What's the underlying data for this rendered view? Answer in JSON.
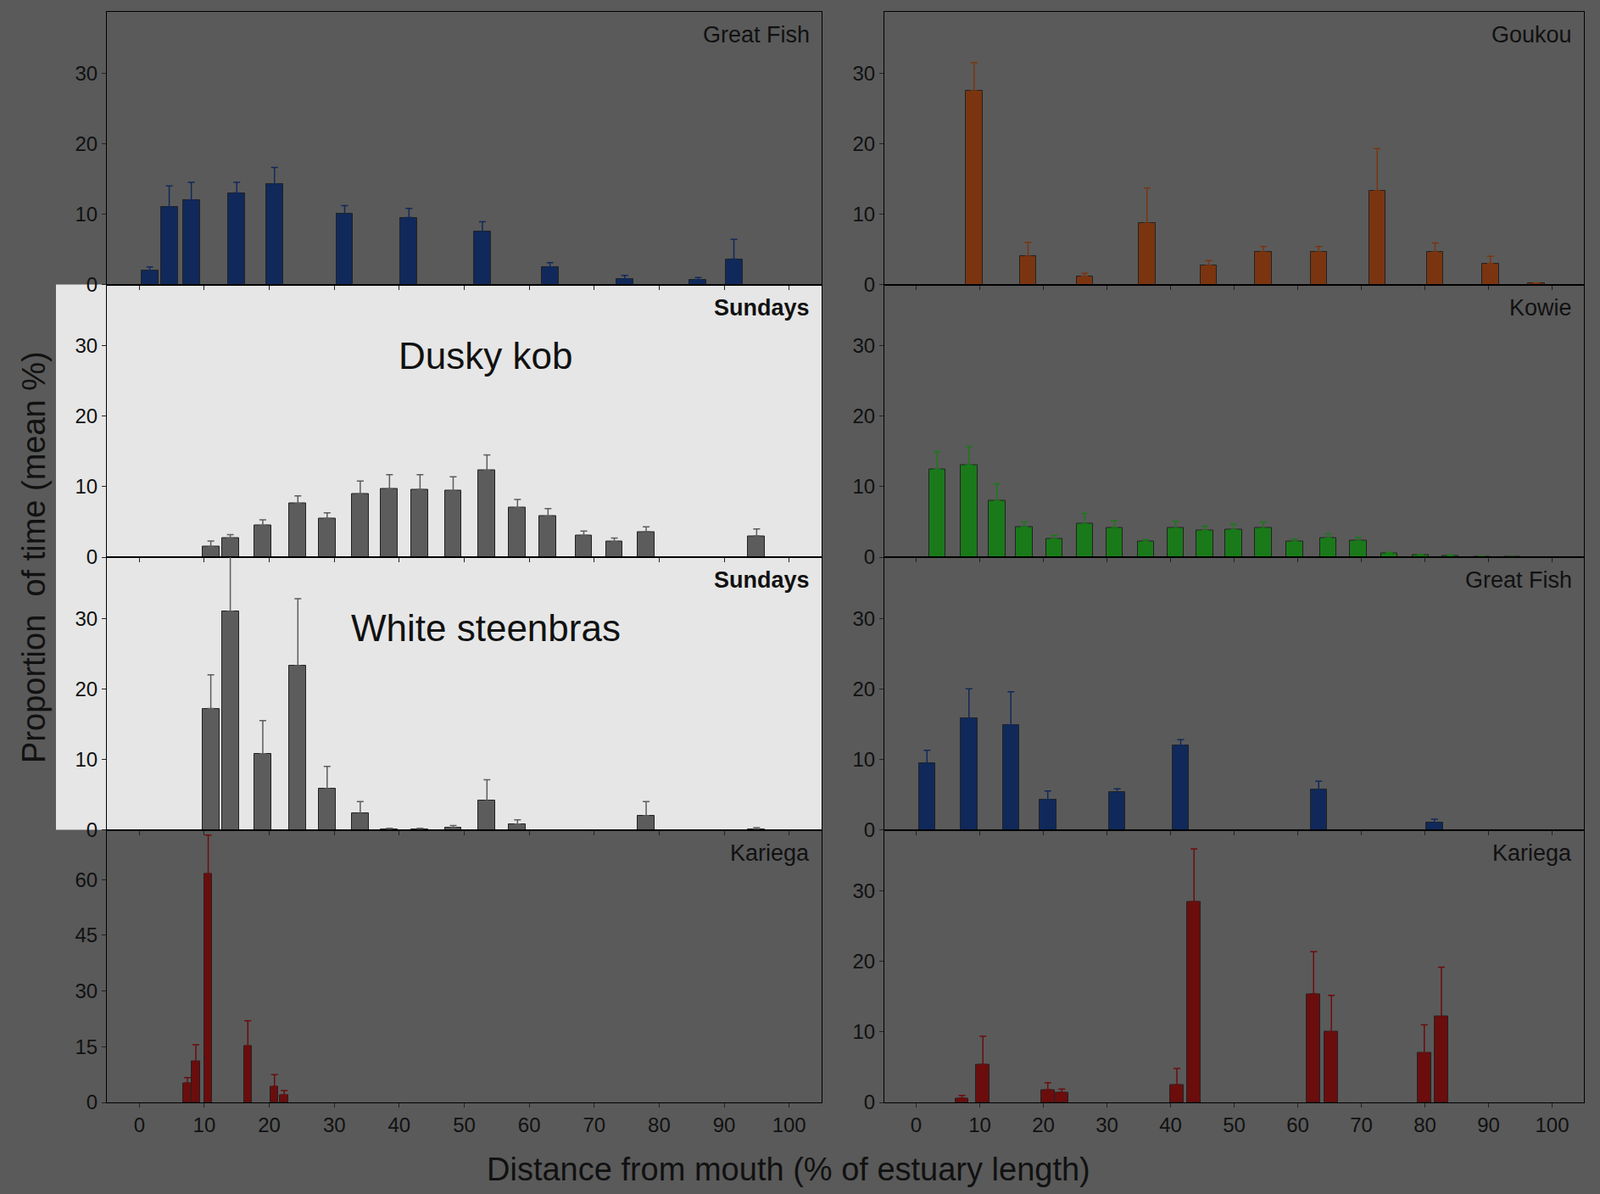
{
  "x_title": "Distance from mouth (% of estuary length)",
  "y_title": "Proportion  of time (mean %)",
  "chart_data": [
    {
      "type": "bar",
      "title": "Great Fish",
      "color": "#10295a",
      "x": [
        1.6,
        4.6,
        8,
        15,
        20.8,
        31.6,
        41.5,
        52.8,
        63.2,
        74.7,
        86,
        91.5
      ],
      "values": [
        2,
        11,
        12,
        13,
        14.3,
        10,
        9.5,
        7.5,
        2.5,
        0.8,
        0.7,
        3.6
      ],
      "errors": [
        0.5,
        3,
        2.5,
        1.5,
        2.3,
        1.2,
        1.3,
        1.4,
        0.6,
        0.5,
        0.3,
        2.8
      ],
      "xlim": [
        -5,
        105
      ],
      "xticks": [
        0,
        10,
        20,
        30,
        40,
        50,
        60,
        70,
        80,
        90,
        100
      ],
      "ylim": [
        0,
        38.7
      ],
      "yticks": [
        0,
        10,
        20,
        30
      ],
      "tick_labels": "y"
    },
    {
      "type": "bar",
      "title": "Goukou",
      "color": "#7a3510",
      "x": [
        9.1,
        17.6,
        26.5,
        36.3,
        46,
        54.6,
        63.3,
        72.5,
        81.6,
        90.3,
        97.5
      ],
      "values": [
        27.5,
        4,
        1.2,
        8.7,
        2.7,
        4.6,
        4.6,
        13.3,
        4.6,
        3,
        0.2
      ],
      "errors": [
        4,
        2,
        0.4,
        5,
        0.7,
        0.8,
        0.8,
        6,
        1.3,
        1,
        0
      ],
      "xlim": [
        -5,
        105
      ],
      "xticks": [
        0,
        10,
        20,
        30,
        40,
        50,
        60,
        70,
        80,
        90,
        100
      ],
      "ylim": [
        0,
        38.7
      ],
      "yticks": [
        0,
        10,
        20,
        30
      ],
      "tick_labels": "y"
    },
    {
      "type": "bar",
      "title": "Sundays",
      "annotation": "Dusky kob",
      "color": "#5c5c5c",
      "x": [
        11,
        14,
        19,
        24.4,
        28.9,
        34,
        38.5,
        43.2,
        48.3,
        53.5,
        58.2,
        62.9,
        68.4,
        73.1,
        78,
        95
      ],
      "values": [
        1.5,
        2.7,
        4.5,
        7.6,
        5.5,
        9,
        9.7,
        9.6,
        9.4,
        12.3,
        7,
        5.8,
        3.1,
        2.2,
        3.6,
        3
      ],
      "errors": [
        0.8,
        0.5,
        0.8,
        1.1,
        0.8,
        1.8,
        2,
        2.1,
        2,
        2.2,
        1.2,
        1.1,
        0.6,
        0.5,
        0.7,
        1
      ],
      "xlim": [
        -5,
        105
      ],
      "xticks": [
        0,
        10,
        20,
        30,
        40,
        50,
        60,
        70,
        80,
        90,
        100
      ],
      "ylim": [
        0,
        38.7
      ],
      "yticks": [
        0,
        10,
        20,
        30
      ],
      "tick_labels": "y"
    },
    {
      "type": "bar",
      "title": "Kowie",
      "color": "#1a7a1a",
      "x": [
        3.3,
        8.3,
        12.7,
        17,
        21.7,
        26.5,
        31.2,
        36.1,
        40.8,
        45.4,
        49.9,
        54.6,
        59.5,
        64.8,
        69.5,
        74.4,
        79.3,
        84,
        88.9,
        93.7
      ],
      "values": [
        12.5,
        13.1,
        8,
        4.3,
        2.6,
        4.7,
        4.2,
        2.2,
        4.1,
        3.8,
        3.9,
        4.1,
        2.2,
        2.7,
        2.3,
        0.5,
        0.3,
        0.2,
        0.1,
        0.05
      ],
      "errors": [
        2.5,
        2.6,
        2.4,
        0.7,
        0.5,
        1.5,
        1,
        0.3,
        1,
        0.6,
        0.8,
        0.9,
        0.4,
        0.6,
        0.5,
        0.2,
        0.1,
        0.1,
        0.05,
        0.03
      ],
      "xlim": [
        -5,
        105
      ],
      "xticks": [
        0,
        10,
        20,
        30,
        40,
        50,
        60,
        70,
        80,
        90,
        100
      ],
      "ylim": [
        0,
        38.7
      ],
      "yticks": [
        0,
        10,
        20,
        30
      ],
      "tick_labels": "y"
    },
    {
      "type": "bar",
      "title": "Sundays",
      "annotation": "White steenbras",
      "color": "#5c5c5c",
      "x": [
        11,
        14,
        19,
        24.4,
        28.9,
        34,
        38.5,
        43.2,
        48.3,
        53.5,
        58.2,
        78,
        95
      ],
      "values": [
        17.2,
        31,
        10.8,
        23.3,
        5.8,
        2.3,
        0.1,
        0.1,
        0.3,
        4.1,
        0.8,
        2,
        0.1
      ],
      "errors": [
        4.8,
        8,
        4.7,
        9.5,
        3.2,
        1.7,
        0.1,
        0.1,
        0.3,
        3,
        0.6,
        2,
        0.2
      ],
      "xlim": [
        -5,
        105
      ],
      "xticks": [
        0,
        10,
        20,
        30,
        40,
        50,
        60,
        70,
        80,
        90,
        100
      ],
      "ylim": [
        0,
        38.7
      ],
      "yticks": [
        0,
        10,
        20,
        30
      ],
      "tick_labels": "y"
    },
    {
      "type": "bar",
      "title": "Great Fish",
      "color": "#10295a",
      "x": [
        1.7,
        8.3,
        14.9,
        20.7,
        31.6,
        41.6,
        63.3,
        81.5
      ],
      "values": [
        9.4,
        15.8,
        14.9,
        4.3,
        5.3,
        12,
        5.7,
        1
      ],
      "errors": [
        1.9,
        4.2,
        4.7,
        1.2,
        0.5,
        0.8,
        1.2,
        0.5
      ],
      "xlim": [
        -5,
        105
      ],
      "xticks": [
        0,
        10,
        20,
        30,
        40,
        50,
        60,
        70,
        80,
        90,
        100
      ],
      "ylim": [
        0,
        38.7
      ],
      "yticks": [
        0,
        10,
        20,
        30
      ],
      "tick_labels": "y"
    },
    {
      "type": "bar",
      "title": "Kariega",
      "color": "#6b0d0d",
      "x": [
        7.4,
        8.7,
        10.6,
        16.7,
        20.8,
        22.3
      ],
      "values": [
        5.2,
        11,
        61.5,
        15.2,
        4.3,
        2
      ],
      "errors": [
        1.5,
        4.5,
        10.5,
        6.8,
        3.2,
        1.2
      ],
      "xlim": [
        -5,
        105
      ],
      "xticks": [
        0,
        10,
        20,
        30,
        40,
        50,
        60,
        70,
        80,
        90,
        100
      ],
      "ylim": [
        0,
        73.4
      ],
      "yticks": [
        0,
        15,
        30,
        45,
        60
      ]
    },
    {
      "type": "bar",
      "title": "Kariega",
      "color": "#6b0d0d",
      "x": [
        7.2,
        10.5,
        20.7,
        22.9,
        41,
        43.7,
        62.5,
        65.3,
        79.9,
        82.6
      ],
      "values": [
        0.6,
        5.4,
        1.8,
        1.4,
        2.5,
        28.5,
        15.4,
        10,
        7,
        12.2
      ],
      "errors": [
        0.4,
        4,
        1,
        0.5,
        2.3,
        7.5,
        6,
        5.2,
        4,
        7
      ],
      "xlim": [
        -5,
        105
      ],
      "xticks": [
        0,
        10,
        20,
        30,
        40,
        50,
        60,
        70,
        80,
        90,
        100
      ],
      "ylim": [
        0,
        38.7
      ],
      "yticks": [
        0,
        10,
        20,
        30
      ]
    }
  ]
}
